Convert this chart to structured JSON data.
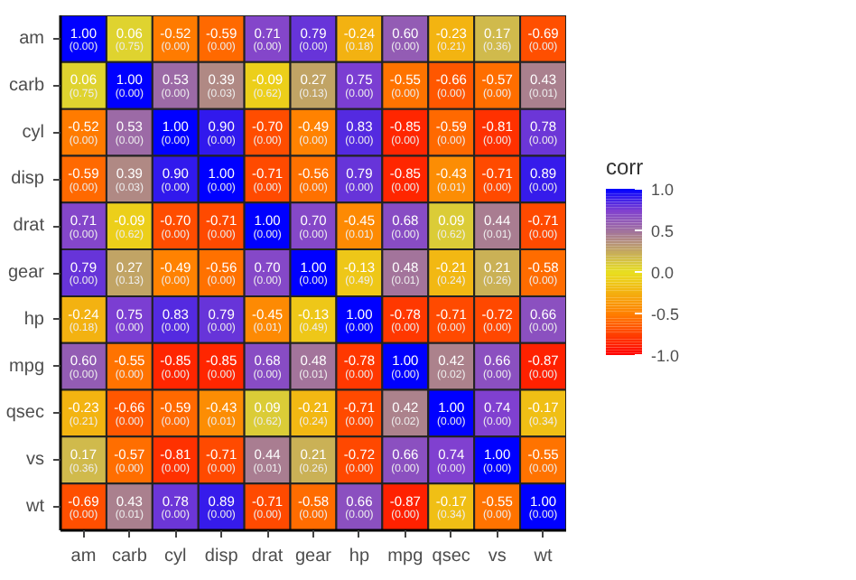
{
  "chart_data": {
    "type": "heatmap",
    "categories": [
      "am",
      "carb",
      "cyl",
      "disp",
      "drat",
      "gear",
      "hp",
      "mpg",
      "qsec",
      "vs",
      "wt"
    ],
    "y_categories": [
      "am",
      "carb",
      "cyl",
      "disp",
      "drat",
      "gear",
      "hp",
      "mpg",
      "qsec",
      "vs",
      "wt"
    ],
    "cells": [
      [
        1.0,
        0.06,
        -0.52,
        -0.59,
        0.71,
        0.79,
        -0.24,
        0.6,
        -0.23,
        0.17,
        -0.69
      ],
      [
        0.06,
        1.0,
        0.53,
        0.39,
        -0.09,
        0.27,
        0.75,
        -0.55,
        -0.66,
        -0.57,
        0.43
      ],
      [
        -0.52,
        0.53,
        1.0,
        0.9,
        -0.7,
        -0.49,
        0.83,
        -0.85,
        -0.59,
        -0.81,
        0.78
      ],
      [
        -0.59,
        0.39,
        0.9,
        1.0,
        -0.71,
        -0.56,
        0.79,
        -0.85,
        -0.43,
        -0.71,
        0.89
      ],
      [
        0.71,
        -0.09,
        -0.7,
        -0.71,
        1.0,
        0.7,
        -0.45,
        0.68,
        0.09,
        0.44,
        -0.71
      ],
      [
        0.79,
        0.27,
        -0.49,
        -0.56,
        0.7,
        1.0,
        -0.13,
        0.48,
        -0.21,
        0.21,
        -0.58
      ],
      [
        -0.24,
        0.75,
        0.83,
        0.79,
        -0.45,
        -0.13,
        1.0,
        -0.78,
        -0.71,
        -0.72,
        0.66
      ],
      [
        0.6,
        -0.55,
        -0.85,
        -0.85,
        0.68,
        0.48,
        -0.78,
        1.0,
        0.42,
        0.66,
        -0.87
      ],
      [
        -0.23,
        -0.66,
        -0.59,
        -0.43,
        0.09,
        -0.21,
        -0.71,
        0.42,
        1.0,
        0.74,
        -0.17
      ],
      [
        0.17,
        -0.57,
        -0.81,
        -0.71,
        0.44,
        0.21,
        -0.72,
        0.66,
        0.74,
        1.0,
        -0.55
      ],
      [
        -0.69,
        0.43,
        0.78,
        0.89,
        -0.71,
        -0.58,
        0.66,
        -0.87,
        -0.17,
        -0.55,
        1.0
      ]
    ],
    "cell_labels": [
      [
        "1.00\n(0.00)",
        "0.06\n(0.75)",
        "-0.52\n(0.00)",
        "-0.59\n(0.00)",
        "0.71\n(0.00)",
        "0.79\n(0.00)",
        "-0.24\n(0.18)",
        "0.60\n(0.00)",
        "-0.23\n(0.21)",
        "0.17\n(0.36)",
        "-0.69\n(0.00)"
      ],
      [
        "0.06\n(0.75)",
        "1.00\n(0.00)",
        "0.53\n(0.00)",
        "0.39\n(0.03)",
        "-0.09\n(0.62)",
        "0.27\n(0.13)",
        "0.75\n(0.00)",
        "-0.55\n(0.00)",
        "-0.66\n(0.00)",
        "-0.57\n(0.00)",
        "0.43\n(0.01)"
      ],
      [
        "-0.52\n(0.00)",
        "0.53\n(0.00)",
        "1.00\n(0.00)",
        "0.90\n(0.00)",
        "-0.70\n(0.00)",
        "-0.49\n(0.00)",
        "0.83\n(0.00)",
        "-0.85\n(0.00)",
        "-0.59\n(0.00)",
        "-0.81\n(0.00)",
        "0.78\n(0.00)"
      ],
      [
        "-0.59\n(0.00)",
        "0.39\n(0.03)",
        "0.90\n(0.00)",
        "1.00\n(0.00)",
        "-0.71\n(0.00)",
        "-0.56\n(0.00)",
        "0.79\n(0.00)",
        "-0.85\n(0.00)",
        "-0.43\n(0.01)",
        "-0.71\n(0.00)",
        "0.89\n(0.00)"
      ],
      [
        "0.71\n(0.00)",
        "-0.09\n(0.62)",
        "-0.70\n(0.00)",
        "-0.71\n(0.00)",
        "1.00\n(0.00)",
        "0.70\n(0.00)",
        "-0.45\n(0.01)",
        "0.68\n(0.00)",
        "0.09\n(0.62)",
        "0.44\n(0.01)",
        "-0.71\n(0.00)"
      ],
      [
        "0.79\n(0.00)",
        "0.27\n(0.13)",
        "-0.49\n(0.00)",
        "-0.56\n(0.00)",
        "0.70\n(0.00)",
        "1.00\n(0.00)",
        "-0.13\n(0.49)",
        "0.48\n(0.01)",
        "-0.21\n(0.24)",
        "0.21\n(0.26)",
        "-0.58\n(0.00)"
      ],
      [
        "-0.24\n(0.18)",
        "0.75\n(0.00)",
        "0.83\n(0.00)",
        "0.79\n(0.00)",
        "-0.45\n(0.01)",
        "-0.13\n(0.49)",
        "1.00\n(0.00)",
        "-0.78\n(0.00)",
        "-0.71\n(0.00)",
        "-0.72\n(0.00)",
        "0.66\n(0.00)"
      ],
      [
        "0.60\n(0.00)",
        "-0.55\n(0.00)",
        "-0.85\n(0.00)",
        "-0.85\n(0.00)",
        "0.68\n(0.00)",
        "0.48\n(0.01)",
        "-0.78\n(0.00)",
        "1.00\n(0.00)",
        "0.42\n(0.02)",
        "0.66\n(0.00)",
        "-0.87\n(0.00)"
      ],
      [
        "-0.23\n(0.21)",
        "-0.66\n(0.00)",
        "-0.59\n(0.00)",
        "-0.43\n(0.01)",
        "0.09\n(0.62)",
        "-0.21\n(0.24)",
        "-0.71\n(0.00)",
        "0.42\n(0.02)",
        "1.00\n(0.00)",
        "0.74\n(0.00)",
        "-0.17\n(0.34)"
      ],
      [
        "0.17\n(0.36)",
        "-0.57\n(0.00)",
        "-0.81\n(0.00)",
        "-0.71\n(0.00)",
        "0.44\n(0.01)",
        "0.21\n(0.26)",
        "-0.72\n(0.00)",
        "0.66\n(0.00)",
        "0.74\n(0.00)",
        "1.00\n(0.00)",
        "-0.55\n(0.00)"
      ],
      [
        "-0.69\n(0.00)",
        "0.43\n(0.01)",
        "0.78\n(0.00)",
        "0.89\n(0.00)",
        "-0.71\n(0.00)",
        "-0.58\n(0.00)",
        "0.66\n(0.00)",
        "-0.87\n(0.00)",
        "-0.17\n(0.34)",
        "-0.55\n(0.00)",
        "1.00\n(0.00)"
      ]
    ],
    "clabel": "corr",
    "clim": [
      -1.0,
      1.0
    ],
    "cticks": [
      {
        "value": 1.0,
        "label": "1.0"
      },
      {
        "value": 0.5,
        "label": "0.5"
      },
      {
        "value": 0.0,
        "label": "0.0"
      },
      {
        "value": -0.5,
        "label": "-0.5"
      },
      {
        "value": -1.0,
        "label": "-1.0"
      }
    ]
  }
}
